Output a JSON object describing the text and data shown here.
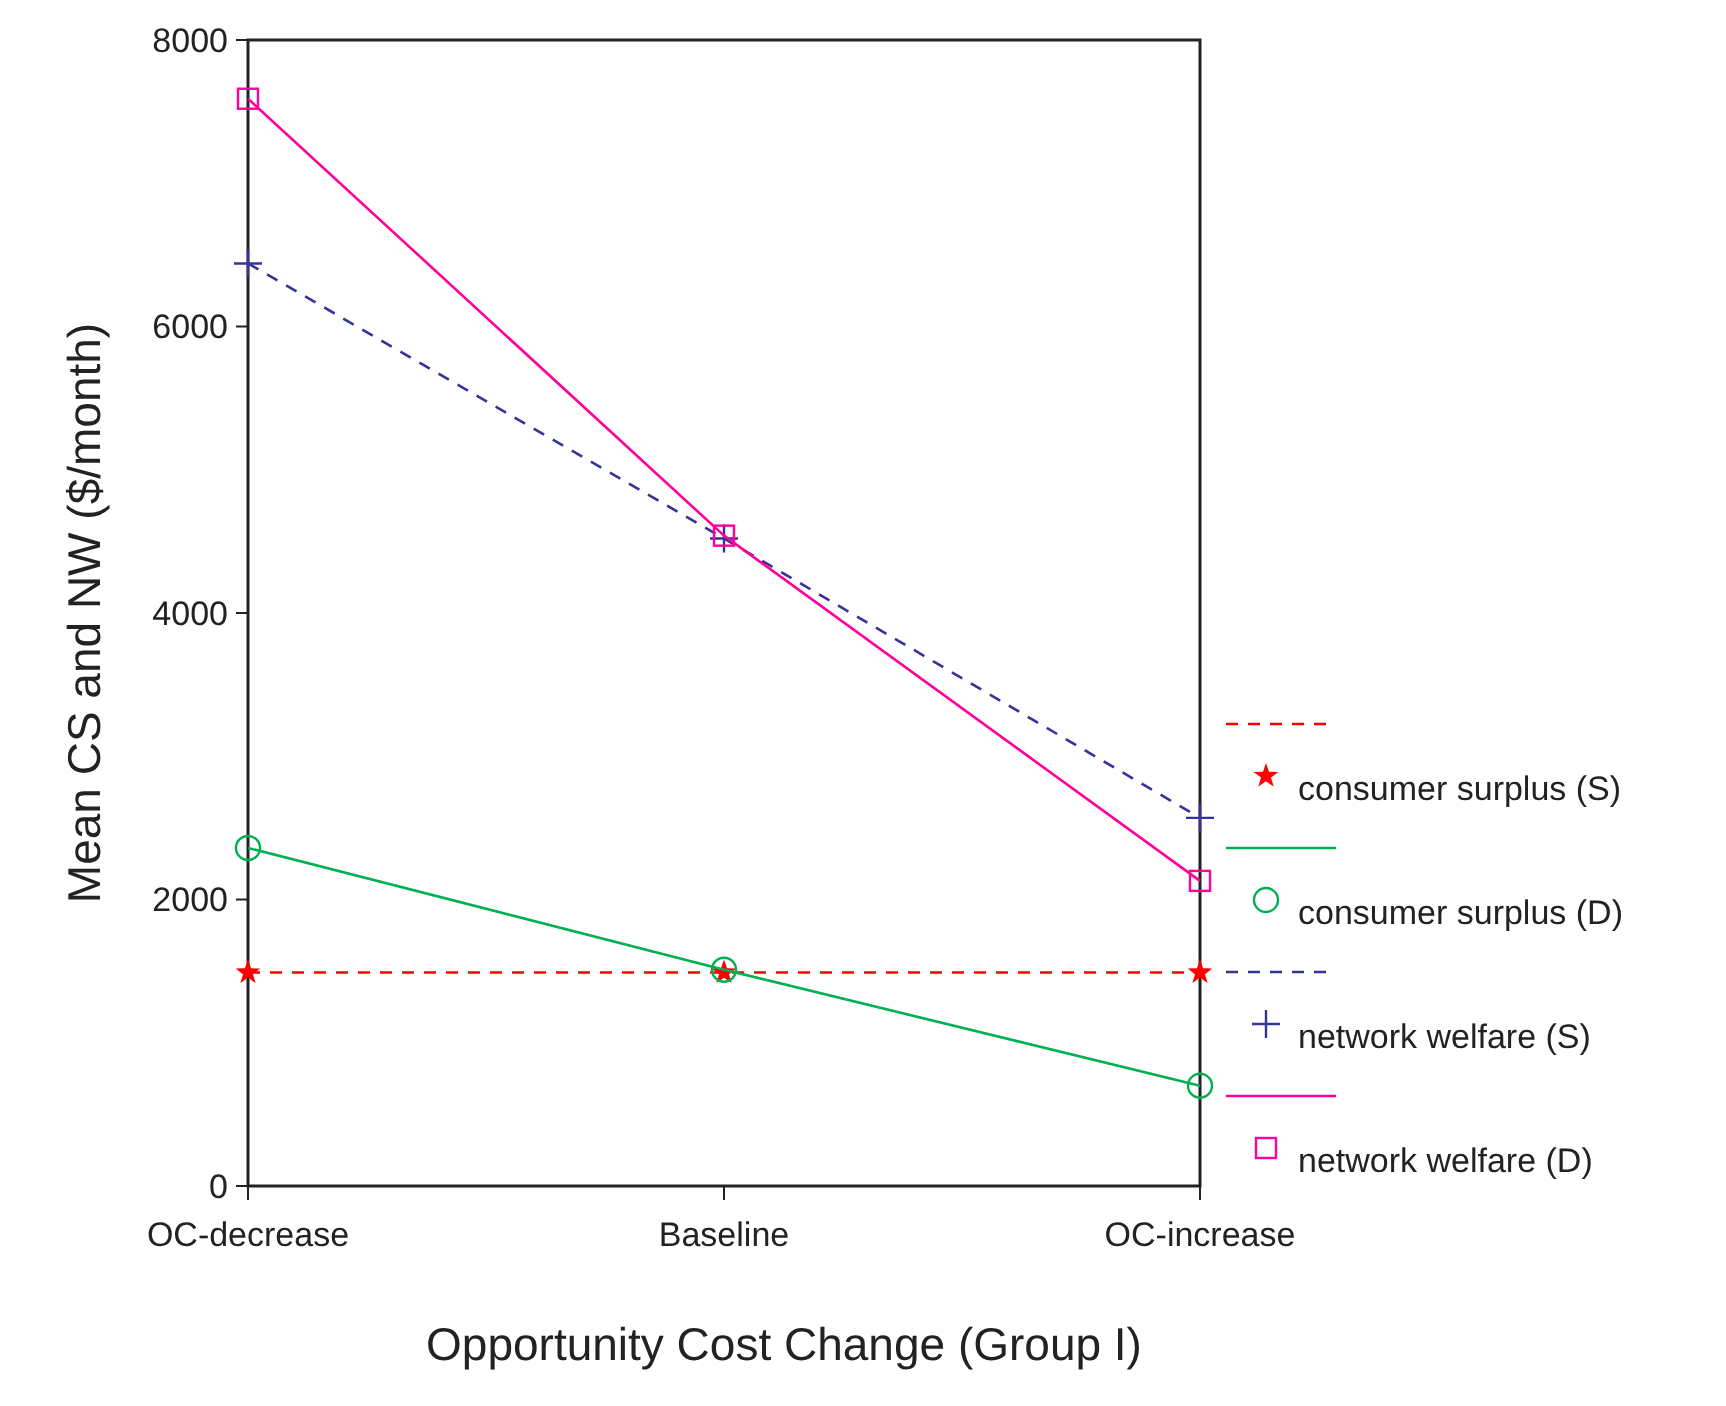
{
  "chart_data": {
    "type": "line",
    "xlabel": "Opportunity Cost Change (Group I)",
    "ylabel": "Mean CS and NW ($/month)",
    "categories": [
      "OC-decrease",
      "Baseline",
      "OC-increase"
    ],
    "ylim": [
      0,
      8000
    ],
    "yticks": [
      0,
      2000,
      4000,
      6000,
      8000
    ],
    "grid": false,
    "legend": "right",
    "series": [
      {
        "name": "consumer surplus (S)",
        "color": "#ff0000",
        "values": [
          1490,
          1490,
          1490
        ],
        "marker": "star",
        "line_style": "dashed"
      },
      {
        "name": "consumer surplus (D)",
        "color": "#00b050",
        "values": [
          2360,
          1510,
          700
        ],
        "marker": "circle",
        "line_style": "solid"
      },
      {
        "name": "network welfare (S)",
        "color": "#333399",
        "values": [
          6440,
          4520,
          2570
        ],
        "marker": "cross",
        "line_style": "dashed"
      },
      {
        "name": "network welfare (D)",
        "color": "#ff0099",
        "values": [
          7590,
          4540,
          2130
        ],
        "marker": "square",
        "line_style": "solid"
      }
    ]
  }
}
